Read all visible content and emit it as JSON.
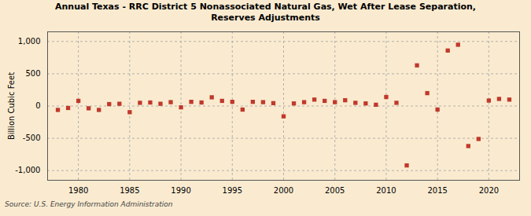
{
  "chart_data": {
    "type": "scatter",
    "title": "Annual Texas - RRC District 5 Nonassociated Natural Gas, Wet After Lease Separation,\nReserves Adjustments",
    "ylabel": "Billion Cubic Feet",
    "source": "Source: U.S. Energy Information Administration",
    "x": [
      1978,
      1979,
      1980,
      1981,
      1982,
      1983,
      1984,
      1985,
      1986,
      1987,
      1988,
      1989,
      1990,
      1991,
      1992,
      1993,
      1994,
      1995,
      1996,
      1997,
      1998,
      1999,
      2000,
      2001,
      2002,
      2003,
      2004,
      2005,
      2006,
      2007,
      2008,
      2009,
      2010,
      2011,
      2012,
      2013,
      2014,
      2015,
      2016,
      2017,
      2018,
      2019,
      2020,
      2021,
      2022
    ],
    "values": [
      -60,
      -30,
      80,
      -35,
      -60,
      30,
      35,
      -95,
      50,
      55,
      35,
      60,
      -20,
      65,
      55,
      135,
      80,
      65,
      -55,
      65,
      60,
      45,
      -160,
      40,
      60,
      100,
      80,
      60,
      90,
      50,
      40,
      20,
      140,
      50,
      -920,
      630,
      200,
      -55,
      860,
      950,
      -620,
      -510,
      85,
      110,
      100
    ],
    "xlim": [
      1977,
      2023
    ],
    "ylim": [
      -1150,
      1150
    ],
    "xticks": [
      1980,
      1985,
      1990,
      1995,
      2000,
      2005,
      2010,
      2015,
      2020
    ],
    "yticks": [
      {
        "value": -1000,
        "label": "-1,000"
      },
      -500,
      0,
      500,
      {
        "value": 1000,
        "label": "1,000"
      }
    ],
    "color": "#c0392b",
    "marker": "square",
    "grid": true
  }
}
